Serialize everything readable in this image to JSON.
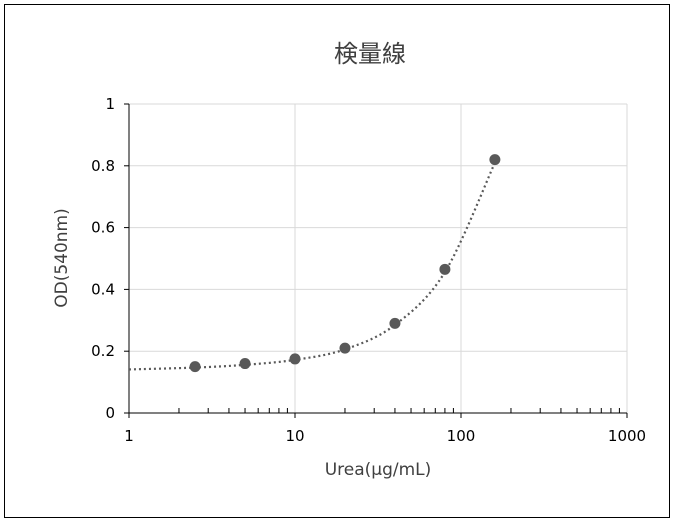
{
  "chart_data": {
    "type": "scatter",
    "title": "検量線",
    "xlabel": "Urea(μg/mL)",
    "ylabel": "OD(540nm)",
    "x_scale": "log",
    "xlim": [
      1,
      1000
    ],
    "ylim": [
      0,
      1
    ],
    "x_ticks": [
      "1",
      "10",
      "100",
      "1000"
    ],
    "y_ticks": [
      "0",
      "0.2",
      "0.4",
      "0.6",
      "0.8",
      "1"
    ],
    "grid": true,
    "legend": "none",
    "series": [
      {
        "x": [
          2.5,
          5,
          10,
          20,
          40,
          80,
          160
        ],
        "y": [
          0.15,
          0.16,
          0.175,
          0.21,
          0.29,
          0.465,
          0.82
        ],
        "marker_color": "#595959"
      }
    ],
    "trendline": {
      "style": "dotted",
      "color": "#595959",
      "points": [
        [
          1,
          0.141
        ],
        [
          2.5,
          0.147
        ],
        [
          5,
          0.156
        ],
        [
          10,
          0.172
        ],
        [
          20,
          0.206
        ],
        [
          40,
          0.285
        ],
        [
          80,
          0.456
        ],
        [
          160,
          0.81
        ]
      ]
    }
  }
}
